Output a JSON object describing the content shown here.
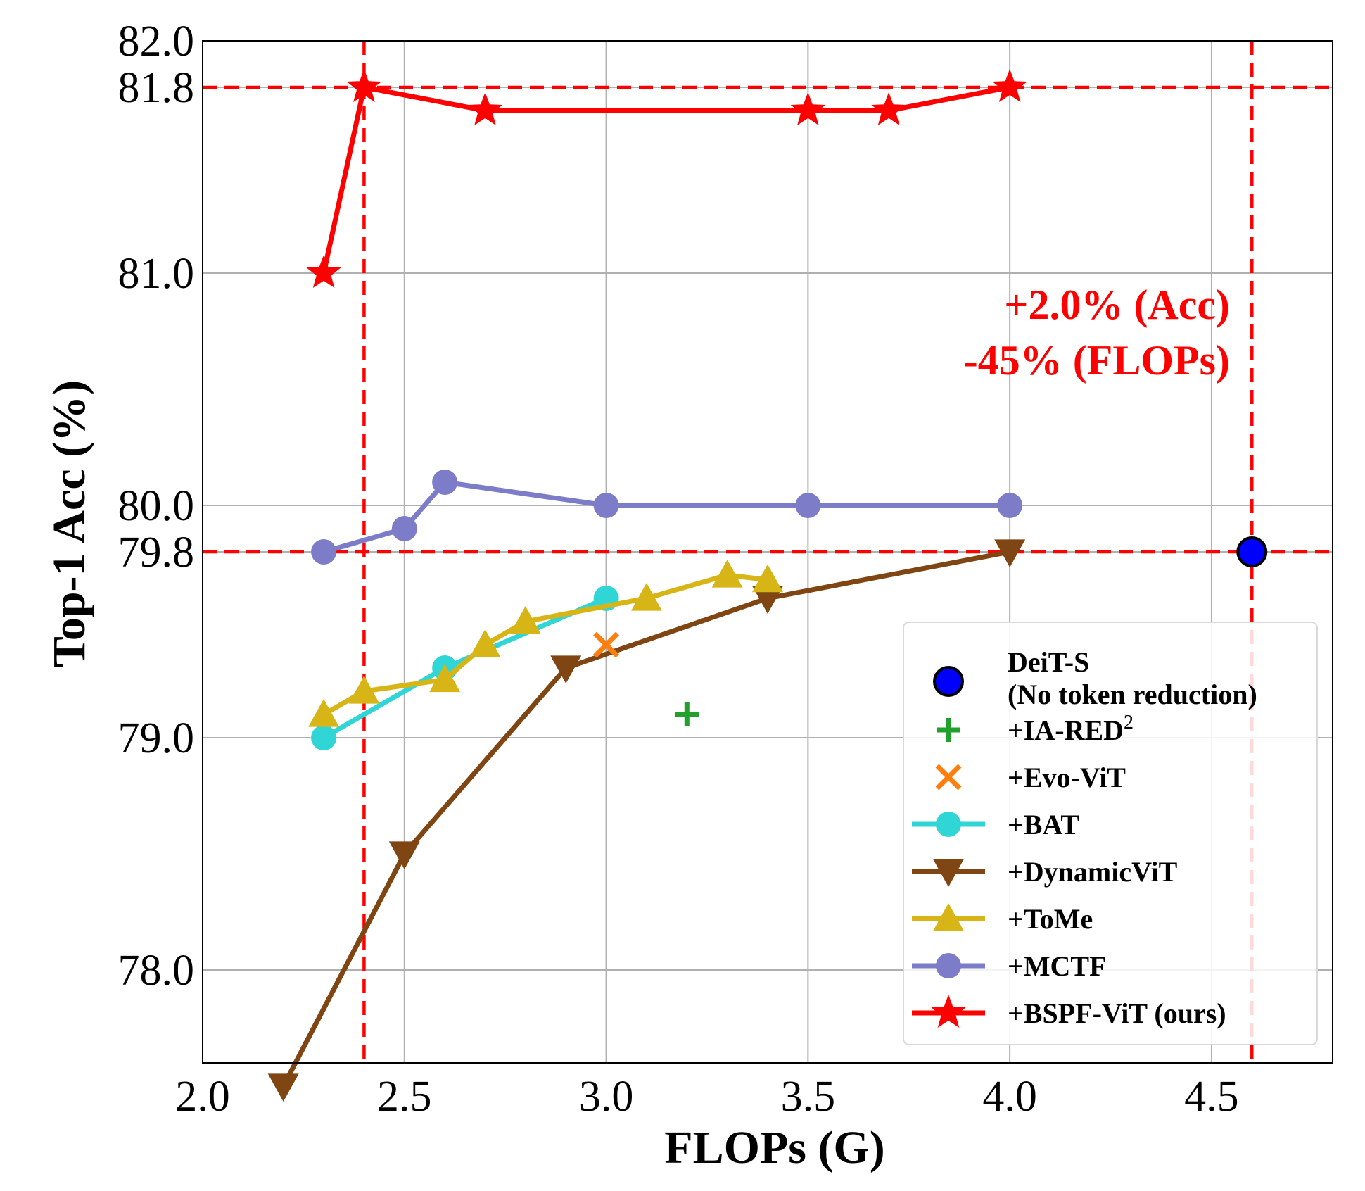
{
  "chart_data": {
    "type": "line",
    "xlabel": "FLOPs (G)",
    "ylabel": "Top-1 Acc (%)",
    "xlim": [
      2.0,
      4.8
    ],
    "ylim": [
      77.6,
      82.0
    ],
    "xticks": [
      "2.0",
      "2.5",
      "3.0",
      "3.5",
      "4.0",
      "4.5"
    ],
    "yticks": [
      "78.0",
      "79.0",
      "79.8",
      "80.0",
      "81.0",
      "81.8",
      "82.0"
    ],
    "grid": true,
    "legend_position": "lower-right",
    "reference_lines": {
      "vertical": [
        2.4,
        4.6
      ],
      "horizontal": [
        81.8,
        79.8
      ],
      "color": "#ff0000"
    },
    "annotation": {
      "line1": "+2.0% (Acc)",
      "line2": "-45% (FLOPs)",
      "color": "#ff0000"
    },
    "series": [
      {
        "name": "DeiT-S",
        "name_line2": "(No token reduction)",
        "marker": "circle",
        "line": false,
        "color": "#0000ff",
        "points": [
          [
            4.6,
            79.8
          ]
        ]
      },
      {
        "name": "+IA-RED",
        "name_sup": "2",
        "marker": "plus",
        "line": false,
        "color": "#22a02c",
        "points": [
          [
            3.2,
            79.1
          ]
        ]
      },
      {
        "name": "+Evo-ViT",
        "marker": "x",
        "line": false,
        "color": "#ff7f0e",
        "points": [
          [
            3.0,
            79.4
          ]
        ]
      },
      {
        "name": "+BAT",
        "marker": "circle",
        "line": true,
        "color": "#30d5d5",
        "points": [
          [
            2.3,
            79.0
          ],
          [
            2.6,
            79.3
          ],
          [
            3.0,
            79.6
          ]
        ]
      },
      {
        "name": "+DynamicViT",
        "marker": "triangle-down",
        "line": true,
        "color": "#7f4513",
        "points": [
          [
            2.2,
            77.5
          ],
          [
            2.5,
            78.5
          ],
          [
            2.9,
            79.3
          ],
          [
            3.4,
            79.6
          ],
          [
            4.0,
            79.8
          ]
        ]
      },
      {
        "name": "+ToMe",
        "marker": "triangle-up",
        "line": true,
        "color": "#d8b516",
        "points": [
          [
            2.3,
            79.1
          ],
          [
            2.4,
            79.2
          ],
          [
            2.6,
            79.25
          ],
          [
            2.7,
            79.4
          ],
          [
            2.8,
            79.5
          ],
          [
            3.1,
            79.6
          ],
          [
            3.3,
            79.7
          ],
          [
            3.4,
            79.68
          ]
        ]
      },
      {
        "name": "+MCTF",
        "marker": "circle",
        "line": true,
        "color": "#7c7cc8",
        "points": [
          [
            2.3,
            79.8
          ],
          [
            2.5,
            79.9
          ],
          [
            2.6,
            80.1
          ],
          [
            3.0,
            80.0
          ],
          [
            3.5,
            80.0
          ],
          [
            4.0,
            80.0
          ]
        ]
      },
      {
        "name": "+BSPF-ViT (ours)",
        "marker": "star",
        "line": true,
        "color": "#ff0000",
        "points": [
          [
            2.3,
            81.0
          ],
          [
            2.4,
            81.8
          ],
          [
            2.7,
            81.7
          ],
          [
            3.5,
            81.7
          ],
          [
            3.7,
            81.7
          ],
          [
            4.0,
            81.8
          ]
        ]
      }
    ]
  }
}
